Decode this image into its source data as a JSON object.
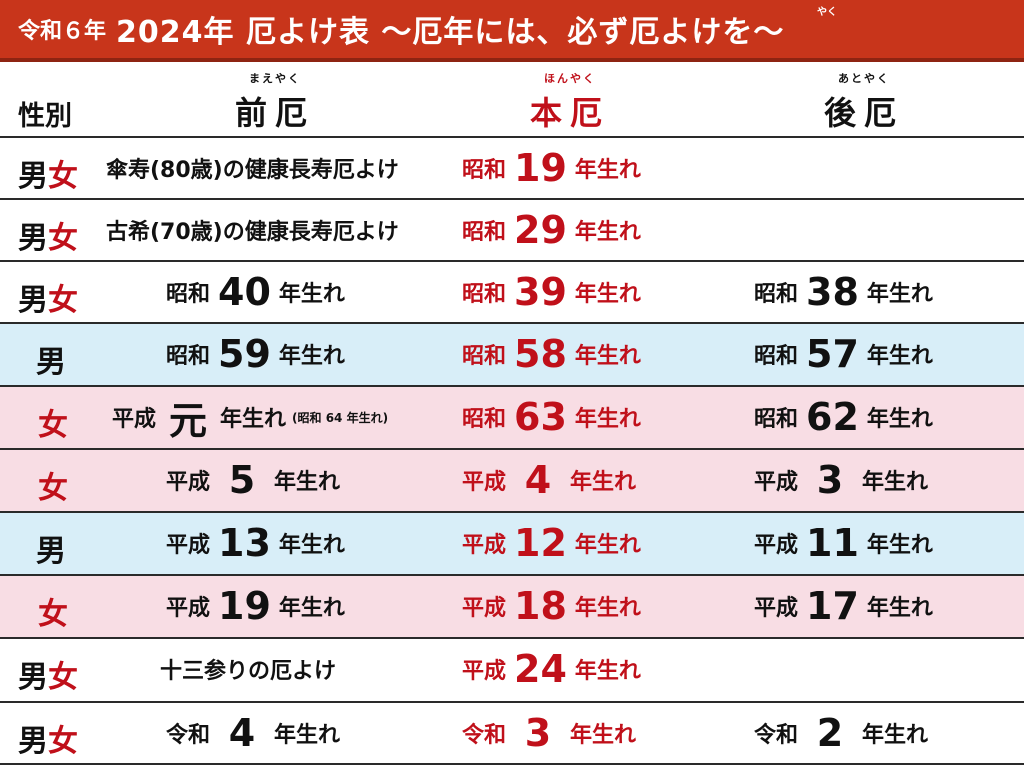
{
  "title": {
    "prefix": "令和６年",
    "main": "2024年 厄よけ表 ～厄年には、必ず厄よけを～",
    "ruby": "やく"
  },
  "header": {
    "gender_label": "性別",
    "before": {
      "ruby": "まえやく",
      "label": "前厄"
    },
    "main": {
      "ruby": "ほんやく",
      "label": "本厄"
    },
    "after": {
      "ruby": "あとやく",
      "label": "後厄"
    }
  },
  "rows": [
    {
      "bg": "white",
      "gender_m": "男",
      "gender_f": "女",
      "before": {
        "text": "傘寿(80歳)の健康長寿厄よけ"
      },
      "main": {
        "era": "昭和",
        "num": "19",
        "suffix": "年生れ"
      },
      "after": null
    },
    {
      "bg": "white",
      "gender_m": "男",
      "gender_f": "女",
      "before": {
        "text": "古希(70歳)の健康長寿厄よけ"
      },
      "main": {
        "era": "昭和",
        "num": "29",
        "suffix": "年生れ"
      },
      "after": null
    },
    {
      "bg": "white",
      "gender_m": "男",
      "gender_f": "女",
      "before": {
        "era": "昭和",
        "num": "40",
        "suffix": "年生れ"
      },
      "main": {
        "era": "昭和",
        "num": "39",
        "suffix": "年生れ"
      },
      "after": {
        "era": "昭和",
        "num": "38",
        "suffix": "年生れ"
      }
    },
    {
      "bg": "blue",
      "gender_m": "男",
      "gender_f": "",
      "before": {
        "era": "昭和",
        "num": "59",
        "suffix": "年生れ"
      },
      "main": {
        "era": "昭和",
        "num": "58",
        "suffix": "年生れ"
      },
      "after": {
        "era": "昭和",
        "num": "57",
        "suffix": "年生れ"
      }
    },
    {
      "bg": "pink",
      "gender_m": "",
      "gender_f": "女",
      "before": {
        "era": "平成",
        "num": "元",
        "suffix": "年生れ",
        "note": "(昭和 64 年生れ)"
      },
      "main": {
        "era": "昭和",
        "num": "63",
        "suffix": "年生れ"
      },
      "after": {
        "era": "昭和",
        "num": "62",
        "suffix": "年生れ"
      }
    },
    {
      "bg": "pink",
      "gender_m": "",
      "gender_f": "女",
      "before": {
        "era": "平成",
        "num": "5",
        "suffix": "年生れ"
      },
      "main": {
        "era": "平成",
        "num": "4",
        "suffix": "年生れ"
      },
      "after": {
        "era": "平成",
        "num": "3",
        "suffix": "年生れ"
      }
    },
    {
      "bg": "blue",
      "gender_m": "男",
      "gender_f": "",
      "before": {
        "era": "平成",
        "num": "13",
        "suffix": "年生れ"
      },
      "main": {
        "era": "平成",
        "num": "12",
        "suffix": "年生れ"
      },
      "after": {
        "era": "平成",
        "num": "11",
        "suffix": "年生れ"
      }
    },
    {
      "bg": "pink",
      "gender_m": "",
      "gender_f": "女",
      "before": {
        "era": "平成",
        "num": "19",
        "suffix": "年生れ"
      },
      "main": {
        "era": "平成",
        "num": "18",
        "suffix": "年生れ"
      },
      "after": {
        "era": "平成",
        "num": "17",
        "suffix": "年生れ"
      }
    },
    {
      "bg": "white",
      "gender_m": "男",
      "gender_f": "女",
      "before": {
        "text": "十三参りの厄よけ"
      },
      "main": {
        "era": "平成",
        "num": "24",
        "suffix": "年生れ"
      },
      "after": null
    },
    {
      "bg": "white",
      "gender_m": "男",
      "gender_f": "女",
      "before": {
        "era": "令和",
        "num": "4",
        "suffix": "年生れ"
      },
      "main": {
        "era": "令和",
        "num": "3",
        "suffix": "年生れ"
      },
      "after": {
        "era": "令和",
        "num": "2",
        "suffix": "年生れ"
      }
    }
  ],
  "colors": {
    "title_bg": "#c8351b",
    "main_red": "#c0101a",
    "male_row": "#d8eef8",
    "female_row": "#f8dde4"
  }
}
